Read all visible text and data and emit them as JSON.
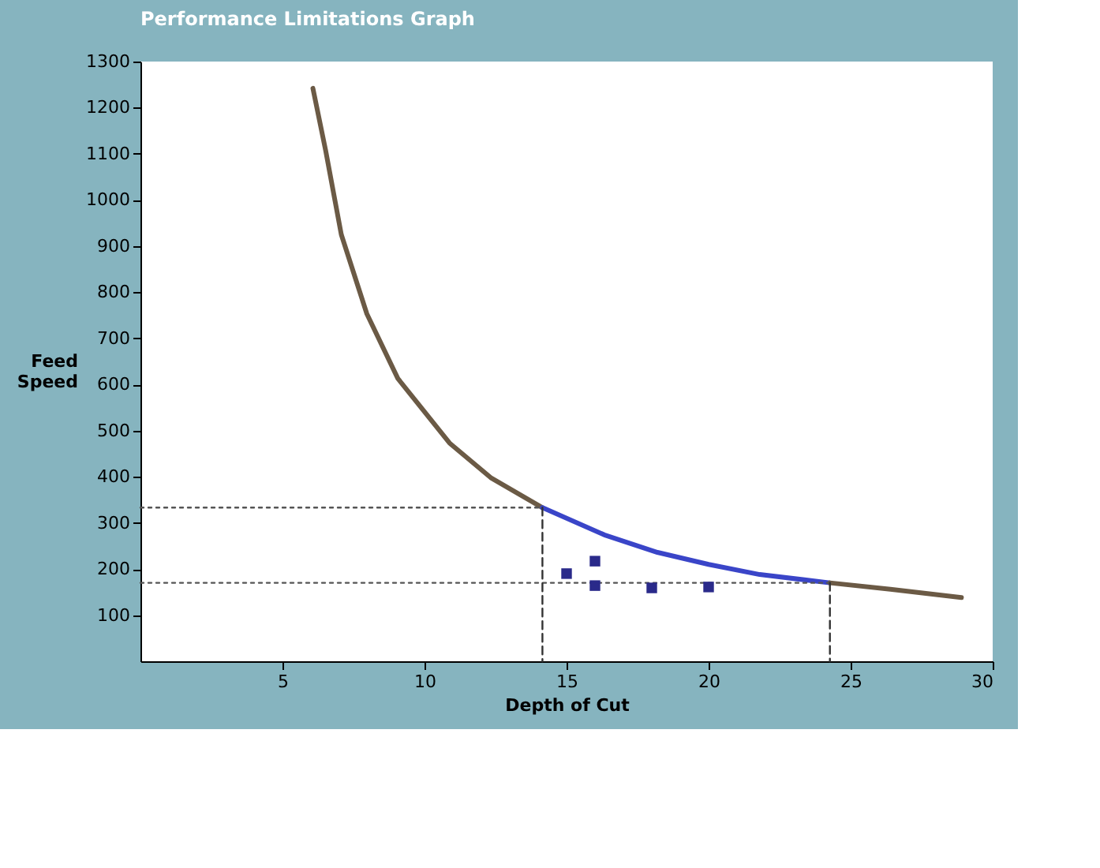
{
  "chart_data": {
    "type": "line",
    "title": "Performance Limitations Graph",
    "xlabel": "Depth of Cut",
    "ylabel": "Feed Speed",
    "xlim": [
      0,
      30
    ],
    "ylim": [
      0,
      1300
    ],
    "xticks": [
      5,
      10,
      15,
      20,
      25,
      30
    ],
    "yticks": [
      100,
      200,
      300,
      400,
      500,
      600,
      700,
      800,
      900,
      1000,
      1100,
      1200,
      1300
    ],
    "grid": false,
    "series": [
      {
        "color": "#6b5a45",
        "line_style": "solid",
        "x": [
          6.07,
          6.52,
          7.07,
          7.97,
          9.06,
          10.88,
          12.33,
          14.15
        ],
        "values": [
          1242,
          1107,
          925,
          753,
          613,
          473,
          398,
          333
        ]
      },
      {
        "color": "#3a45c8",
        "line_style": "solid",
        "x": [
          14.15,
          16.33,
          18.2,
          20,
          21.8,
          24.27
        ],
        "values": [
          333,
          274,
          236,
          210,
          188,
          170
        ]
      },
      {
        "color": "#6b5a45",
        "line_style": "solid",
        "x": [
          24.27,
          26.4,
          28.9
        ],
        "values": [
          170,
          156,
          138
        ]
      },
      {
        "color": "#555555",
        "line_style": "dotted",
        "x": [
          0,
          14.15
        ],
        "values": [
          333,
          333
        ]
      },
      {
        "color": "#555555",
        "line_style": "dotted",
        "x": [
          0,
          24.27
        ],
        "values": [
          170,
          170
        ]
      },
      {
        "color": "#333333",
        "line_style": "dashed",
        "x": [
          14.15,
          14.15
        ],
        "values": [
          333,
          0
        ]
      },
      {
        "color": "#333333",
        "line_style": "dashed",
        "x": [
          24.27,
          24.27
        ],
        "values": [
          170,
          0
        ]
      },
      {
        "type": "scatter",
        "color": "#2a2a8a",
        "marker": "square",
        "x": [
          15,
          16,
          16,
          18,
          20
        ],
        "values": [
          190,
          217,
          164,
          159,
          161
        ]
      }
    ]
  }
}
